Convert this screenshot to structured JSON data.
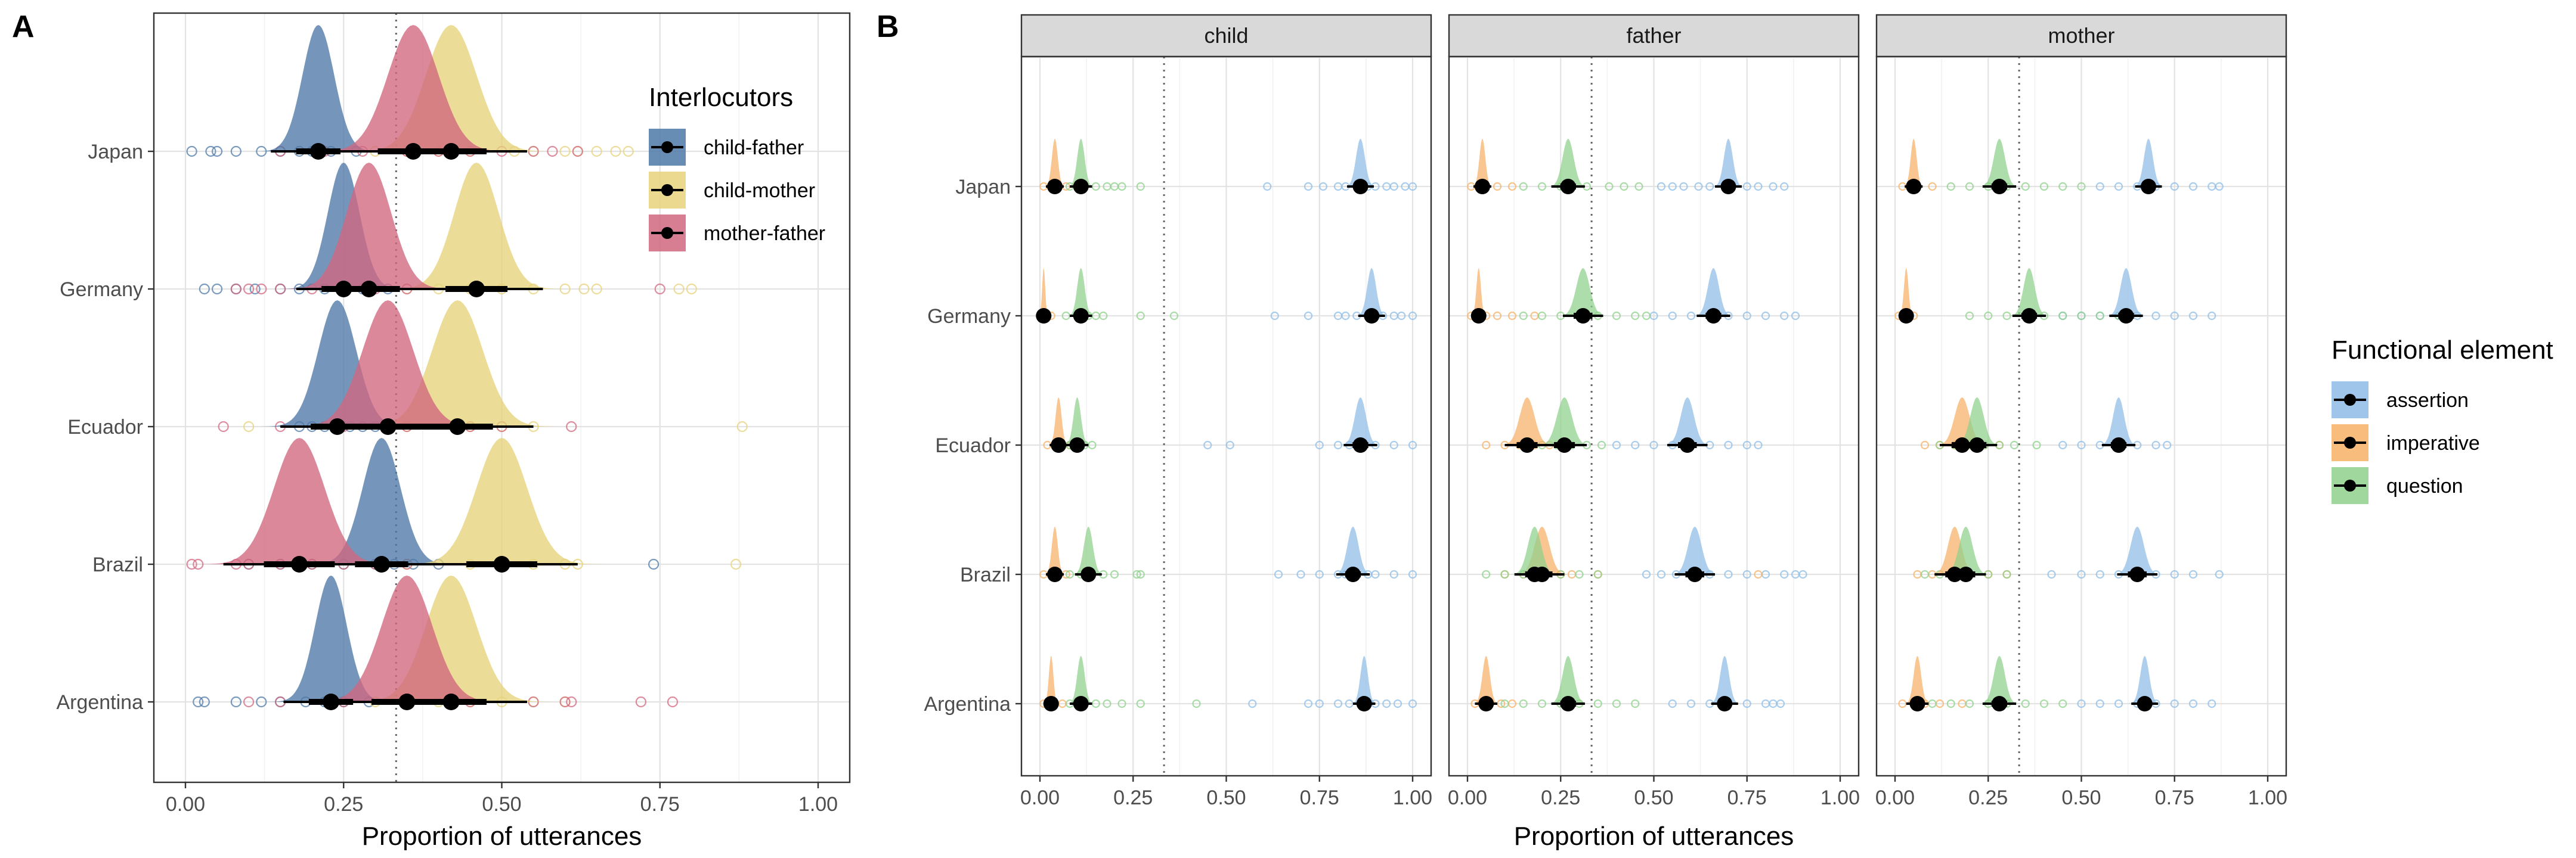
{
  "panel_labels": [
    "A",
    "B"
  ],
  "legend_A": {
    "title": "Interlocutors",
    "items": [
      {
        "label": "child-father",
        "color": "#4E79A7"
      },
      {
        "label": "child-mother",
        "color": "#E6D27A"
      },
      {
        "label": "mother-father",
        "color": "#D1677F"
      }
    ]
  },
  "legend_B": {
    "title": "Functional element",
    "items": [
      {
        "label": "assertion",
        "color": "#8EBCE6"
      },
      {
        "label": "imperative",
        "color": "#F7B066"
      },
      {
        "label": "question",
        "color": "#8ED08B"
      }
    ]
  },
  "chart_data": [
    {
      "panel": "A",
      "type": "scatter",
      "xlabel": "Proportion of utterances",
      "xlim": [
        0,
        1
      ],
      "xticks": [
        "0.00",
        "0.25",
        "0.50",
        "0.75",
        "1.00"
      ],
      "categories": [
        "Japan",
        "Germany",
        "Ecuador",
        "Brazil",
        "Argentina"
      ],
      "reference_line_x": 0.333,
      "series": [
        {
          "name": "child-father",
          "color": "#4E79A7",
          "estimates": [
            0.21,
            0.25,
            0.24,
            0.31,
            0.23
          ],
          "spread": [
            0.025,
            0.025,
            0.03,
            0.03,
            0.025
          ],
          "points": [
            [
              0.01,
              0.04,
              0.05,
              0.08,
              0.12,
              0.15,
              0.18,
              0.2,
              0.23,
              0.27
            ],
            [
              0.03,
              0.05,
              0.08,
              0.11,
              0.15,
              0.18,
              0.22,
              0.25,
              0.28,
              0.32
            ],
            [
              0.18,
              0.2,
              0.22,
              0.24,
              0.26,
              0.28,
              0.3
            ],
            [
              0.1,
              0.15,
              0.2,
              0.25,
              0.3,
              0.33,
              0.36,
              0.4,
              0.74
            ],
            [
              0.02,
              0.03,
              0.08,
              0.12,
              0.15,
              0.19,
              0.22,
              0.25,
              0.29
            ]
          ]
        },
        {
          "name": "child-mother",
          "color": "#E6D27A",
          "estimates": [
            0.42,
            0.46,
            0.43,
            0.5,
            0.42
          ],
          "spread": [
            0.04,
            0.035,
            0.04,
            0.04,
            0.04
          ],
          "points": [
            [
              0.3,
              0.35,
              0.4,
              0.45,
              0.52,
              0.55,
              0.6,
              0.62,
              0.65,
              0.68,
              0.7
            ],
            [
              0.35,
              0.4,
              0.45,
              0.5,
              0.55,
              0.6,
              0.63,
              0.65,
              0.78,
              0.8
            ],
            [
              0.1,
              0.35,
              0.45,
              0.5,
              0.55,
              0.88
            ],
            [
              0.35,
              0.45,
              0.5,
              0.55,
              0.6,
              0.62,
              0.87
            ],
            [
              0.3,
              0.35,
              0.4,
              0.45,
              0.5,
              0.55,
              0.6
            ]
          ]
        },
        {
          "name": "mother-father",
          "color": "#D1677F",
          "estimates": [
            0.36,
            0.29,
            0.32,
            0.18,
            0.35
          ],
          "spread": [
            0.04,
            0.035,
            0.04,
            0.04,
            0.04
          ],
          "points": [
            [
              0.15,
              0.22,
              0.28,
              0.35,
              0.4,
              0.45,
              0.5,
              0.55,
              0.58,
              0.62
            ],
            [
              0.08,
              0.1,
              0.12,
              0.15,
              0.2,
              0.25,
              0.3,
              0.35,
              0.75
            ],
            [
              0.06,
              0.15,
              0.25,
              0.35,
              0.45,
              0.5,
              0.61
            ],
            [
              0.01,
              0.02,
              0.08,
              0.1,
              0.15,
              0.2,
              0.25,
              0.3,
              0.35
            ],
            [
              0.1,
              0.15,
              0.25,
              0.35,
              0.45,
              0.55,
              0.6,
              0.61,
              0.72,
              0.77
            ]
          ]
        }
      ]
    },
    {
      "panel": "B",
      "type": "scatter",
      "xlabel": "Proportion of utterances",
      "xlim": [
        0,
        1
      ],
      "xticks": [
        "0.00",
        "0.25",
        "0.50",
        "0.75",
        "1.00"
      ],
      "categories": [
        "Japan",
        "Germany",
        "Ecuador",
        "Brazil",
        "Argentina"
      ],
      "reference_line_x": 0.333,
      "facets": [
        {
          "name": "child",
          "series": [
            {
              "name": "assertion",
              "color": "#8EBCE6",
              "estimates": [
                0.86,
                0.89,
                0.86,
                0.84,
                0.87
              ],
              "spread": [
                0.012,
                0.012,
                0.015,
                0.015,
                0.01
              ],
              "points": [
                [
                  0.61,
                  0.72,
                  0.76,
                  0.8,
                  0.82,
                  0.85,
                  0.88,
                  0.9,
                  0.93,
                  0.95,
                  0.98,
                  1.0
                ],
                [
                  0.63,
                  0.72,
                  0.8,
                  0.82,
                  0.85,
                  0.88,
                  0.9,
                  0.92,
                  0.95,
                  0.97,
                  1.0
                ],
                [
                  0.45,
                  0.51,
                  0.75,
                  0.8,
                  0.83,
                  0.87,
                  0.9,
                  0.95,
                  1.0
                ],
                [
                  0.64,
                  0.7,
                  0.75,
                  0.8,
                  0.82,
                  0.85,
                  0.88,
                  0.9,
                  0.95,
                  1.0
                ],
                [
                  0.57,
                  0.72,
                  0.75,
                  0.8,
                  0.83,
                  0.87,
                  0.9,
                  0.93,
                  0.96,
                  1.0
                ]
              ]
            },
            {
              "name": "imperative",
              "color": "#F7B066",
              "estimates": [
                0.04,
                0.01,
                0.05,
                0.04,
                0.03
              ],
              "spread": [
                0.008,
                0.004,
                0.008,
                0.008,
                0.006
              ],
              "points": [
                [
                  0.01,
                  0.03,
                  0.05,
                  0.07
                ],
                [
                  0.0,
                  0.01,
                  0.02,
                  0.03
                ],
                [
                  0.02,
                  0.04,
                  0.06,
                  0.08
                ],
                [
                  0.01,
                  0.03,
                  0.05,
                  0.07
                ],
                [
                  0.01,
                  0.02,
                  0.04,
                  0.06
                ]
              ]
            },
            {
              "name": "question",
              "color": "#8ED08B",
              "estimates": [
                0.11,
                0.11,
                0.1,
                0.13,
                0.11
              ],
              "spread": [
                0.01,
                0.01,
                0.01,
                0.012,
                0.01
              ],
              "points": [
                [
                  0.08,
                  0.12,
                  0.15,
                  0.18,
                  0.2,
                  0.22,
                  0.27
                ],
                [
                  0.07,
                  0.1,
                  0.13,
                  0.15,
                  0.17,
                  0.27,
                  0.36
                ],
                [
                  0.08,
                  0.1,
                  0.12,
                  0.14
                ],
                [
                  0.08,
                  0.11,
                  0.14,
                  0.17,
                  0.2,
                  0.26,
                  0.27
                ],
                [
                  0.08,
                  0.11,
                  0.15,
                  0.18,
                  0.22,
                  0.27,
                  0.42
                ]
              ]
            }
          ]
        },
        {
          "name": "father",
          "series": [
            {
              "name": "assertion",
              "color": "#8EBCE6",
              "estimates": [
                0.7,
                0.66,
                0.59,
                0.61,
                0.69
              ],
              "spread": [
                0.012,
                0.015,
                0.018,
                0.018,
                0.012
              ],
              "points": [
                [
                  0.52,
                  0.55,
                  0.58,
                  0.62,
                  0.65,
                  0.7,
                  0.75,
                  0.78,
                  0.82,
                  0.85
                ],
                [
                  0.5,
                  0.55,
                  0.6,
                  0.65,
                  0.7,
                  0.75,
                  0.8,
                  0.85,
                  0.88
                ],
                [
                  0.4,
                  0.45,
                  0.5,
                  0.55,
                  0.6,
                  0.65,
                  0.7,
                  0.75,
                  0.78
                ],
                [
                  0.48,
                  0.52,
                  0.56,
                  0.6,
                  0.65,
                  0.7,
                  0.75,
                  0.8,
                  0.85,
                  0.88,
                  0.9
                ],
                [
                  0.55,
                  0.6,
                  0.65,
                  0.7,
                  0.75,
                  0.8,
                  0.82,
                  0.84
                ]
              ]
            },
            {
              "name": "imperative",
              "color": "#F7B066",
              "estimates": [
                0.04,
                0.03,
                0.16,
                0.2,
                0.05
              ],
              "spread": [
                0.008,
                0.006,
                0.02,
                0.02,
                0.01
              ],
              "points": [
                [
                  0.01,
                  0.03,
                  0.05,
                  0.08,
                  0.12
                ],
                [
                  0.01,
                  0.03,
                  0.05,
                  0.08,
                  0.12,
                  0.18
                ],
                [
                  0.05,
                  0.1,
                  0.14,
                  0.18,
                  0.22,
                  0.26
                ],
                [
                  0.1,
                  0.15,
                  0.2,
                  0.25,
                  0.28,
                  0.35,
                  0.78
                ],
                [
                  0.02,
                  0.04,
                  0.06,
                  0.09,
                  0.12
                ]
              ]
            },
            {
              "name": "question",
              "color": "#8ED08B",
              "estimates": [
                0.27,
                0.31,
                0.26,
                0.18,
                0.27
              ],
              "spread": [
                0.015,
                0.018,
                0.02,
                0.018,
                0.015
              ],
              "points": [
                [
                  0.15,
                  0.2,
                  0.25,
                  0.28,
                  0.32,
                  0.38,
                  0.42,
                  0.46
                ],
                [
                  0.15,
                  0.2,
                  0.25,
                  0.3,
                  0.35,
                  0.4,
                  0.45,
                  0.48
                ],
                [
                  0.15,
                  0.2,
                  0.24,
                  0.28,
                  0.32,
                  0.36
                ],
                [
                  0.05,
                  0.1,
                  0.15,
                  0.2,
                  0.25,
                  0.3,
                  0.35
                ],
                [
                  0.1,
                  0.15,
                  0.2,
                  0.25,
                  0.3,
                  0.35,
                  0.4,
                  0.45
                ]
              ]
            }
          ]
        },
        {
          "name": "mother",
          "series": [
            {
              "name": "assertion",
              "color": "#8EBCE6",
              "estimates": [
                0.68,
                0.62,
                0.6,
                0.65,
                0.67
              ],
              "spread": [
                0.012,
                0.015,
                0.015,
                0.018,
                0.012
              ],
              "points": [
                [
                  0.55,
                  0.6,
                  0.65,
                  0.7,
                  0.75,
                  0.8,
                  0.85,
                  0.87
                ],
                [
                  0.45,
                  0.5,
                  0.55,
                  0.6,
                  0.65,
                  0.7,
                  0.75,
                  0.8,
                  0.85
                ],
                [
                  0.45,
                  0.5,
                  0.55,
                  0.6,
                  0.65,
                  0.7,
                  0.73
                ],
                [
                  0.42,
                  0.5,
                  0.55,
                  0.6,
                  0.65,
                  0.7,
                  0.75,
                  0.8,
                  0.87
                ],
                [
                  0.5,
                  0.55,
                  0.6,
                  0.65,
                  0.7,
                  0.75,
                  0.8,
                  0.85
                ]
              ]
            },
            {
              "name": "imperative",
              "color": "#F7B066",
              "estimates": [
                0.05,
                0.03,
                0.18,
                0.16,
                0.06
              ],
              "spread": [
                0.008,
                0.006,
                0.02,
                0.018,
                0.01
              ],
              "points": [
                [
                  0.02,
                  0.04,
                  0.06,
                  0.1
                ],
                [
                  0.01,
                  0.03,
                  0.05
                ],
                [
                  0.08,
                  0.12,
                  0.16,
                  0.2,
                  0.24,
                  0.28
                ],
                [
                  0.06,
                  0.1,
                  0.15,
                  0.2,
                  0.25,
                  0.3
                ],
                [
                  0.02,
                  0.05,
                  0.08,
                  0.12,
                  0.18
                ]
              ]
            },
            {
              "name": "question",
              "color": "#8ED08B",
              "estimates": [
                0.28,
                0.36,
                0.22,
                0.19,
                0.28
              ],
              "spread": [
                0.015,
                0.015,
                0.018,
                0.018,
                0.015
              ],
              "points": [
                [
                  0.15,
                  0.2,
                  0.25,
                  0.3,
                  0.35,
                  0.4,
                  0.45,
                  0.5
                ],
                [
                  0.2,
                  0.25,
                  0.3,
                  0.35,
                  0.4,
                  0.45,
                  0.5,
                  0.55,
                  0.6
                ],
                [
                  0.12,
                  0.16,
                  0.2,
                  0.24,
                  0.28,
                  0.32,
                  0.38
                ],
                [
                  0.08,
                  0.12,
                  0.16,
                  0.2,
                  0.25,
                  0.3
                ],
                [
                  0.1,
                  0.15,
                  0.2,
                  0.25,
                  0.3,
                  0.35,
                  0.4,
                  0.45
                ]
              ]
            }
          ]
        }
      ]
    }
  ]
}
